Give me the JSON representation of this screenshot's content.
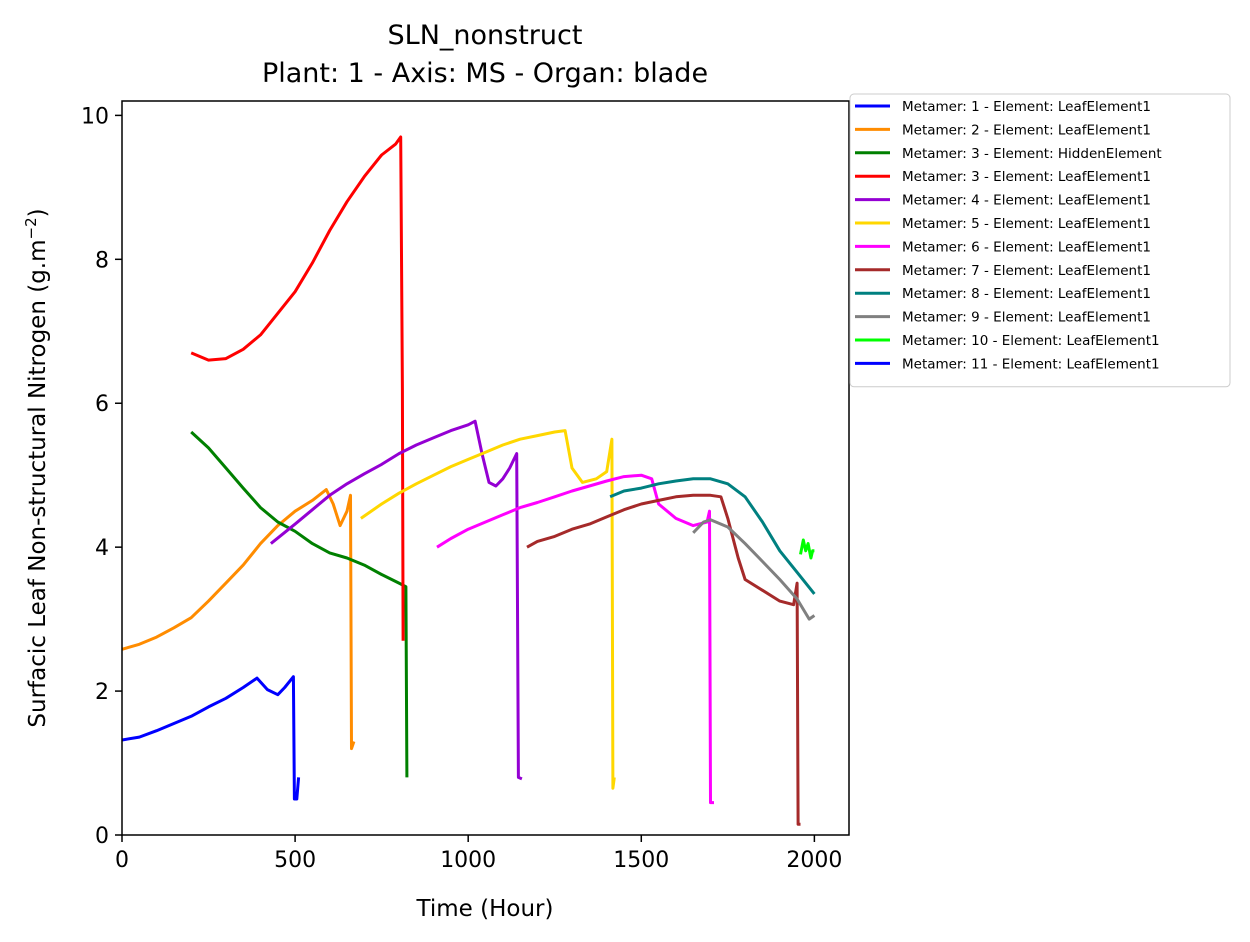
{
  "chart_data": {
    "type": "line",
    "title": "SLN_nonstruct",
    "subtitle": "Plant: 1 - Axis: MS - Organ: blade",
    "xlabel": "Time (Hour)",
    "ylabel": "Surfacic Leaf Non-structural Nitrogen (g.m",
    "ylabel_sup": "−2",
    "ylabel_close": ")",
    "xlim": [
      0,
      2100
    ],
    "ylim": [
      0,
      10.2
    ],
    "xticks": [
      0,
      500,
      1000,
      1500,
      2000
    ],
    "yticks": [
      0,
      2,
      4,
      6,
      8,
      10
    ],
    "grid": false,
    "legend_position": "outside-right-top",
    "series": [
      {
        "name": "Metamer: 1 - Element: LeafElement1",
        "color": "#0000ff",
        "points": [
          [
            0,
            1.32
          ],
          [
            50,
            1.36
          ],
          [
            100,
            1.45
          ],
          [
            150,
            1.55
          ],
          [
            200,
            1.65
          ],
          [
            250,
            1.78
          ],
          [
            300,
            1.9
          ],
          [
            350,
            2.05
          ],
          [
            390,
            2.18
          ],
          [
            420,
            2.02
          ],
          [
            450,
            1.95
          ],
          [
            470,
            2.05
          ],
          [
            495,
            2.2
          ],
          [
            498,
            0.5
          ],
          [
            505,
            0.5
          ],
          [
            510,
            0.8
          ]
        ]
      },
      {
        "name": "Metamer: 2 - Element: LeafElement1",
        "color": "#ff8c00",
        "points": [
          [
            0,
            2.58
          ],
          [
            50,
            2.65
          ],
          [
            100,
            2.75
          ],
          [
            150,
            2.88
          ],
          [
            200,
            3.02
          ],
          [
            250,
            3.25
          ],
          [
            300,
            3.5
          ],
          [
            350,
            3.75
          ],
          [
            400,
            4.05
          ],
          [
            450,
            4.3
          ],
          [
            500,
            4.5
          ],
          [
            550,
            4.65
          ],
          [
            590,
            4.8
          ],
          [
            610,
            4.6
          ],
          [
            630,
            4.3
          ],
          [
            650,
            4.5
          ],
          [
            660,
            4.72
          ],
          [
            663,
            1.2
          ],
          [
            670,
            1.3
          ]
        ]
      },
      {
        "name": "Metamer: 3 - Element: HiddenElement",
        "color": "#008000",
        "points": [
          [
            200,
            5.6
          ],
          [
            250,
            5.38
          ],
          [
            300,
            5.1
          ],
          [
            350,
            4.82
          ],
          [
            400,
            4.55
          ],
          [
            450,
            4.35
          ],
          [
            500,
            4.22
          ],
          [
            550,
            4.05
          ],
          [
            600,
            3.92
          ],
          [
            650,
            3.85
          ],
          [
            700,
            3.75
          ],
          [
            750,
            3.62
          ],
          [
            800,
            3.5
          ],
          [
            820,
            3.45
          ],
          [
            823,
            0.8
          ]
        ]
      },
      {
        "name": "Metamer: 3 - Element: LeafElement1",
        "color": "#ff0000",
        "points": [
          [
            200,
            6.7
          ],
          [
            250,
            6.6
          ],
          [
            300,
            6.62
          ],
          [
            350,
            6.75
          ],
          [
            400,
            6.95
          ],
          [
            450,
            7.25
          ],
          [
            500,
            7.55
          ],
          [
            550,
            7.95
          ],
          [
            600,
            8.4
          ],
          [
            650,
            8.8
          ],
          [
            700,
            9.15
          ],
          [
            750,
            9.45
          ],
          [
            790,
            9.6
          ],
          [
            805,
            9.7
          ],
          [
            810,
            6.2
          ],
          [
            812,
            2.7
          ]
        ]
      },
      {
        "name": "Metamer: 4 - Element: LeafElement1",
        "color": "#9400d3",
        "points": [
          [
            430,
            4.05
          ],
          [
            500,
            4.32
          ],
          [
            550,
            4.52
          ],
          [
            600,
            4.72
          ],
          [
            650,
            4.88
          ],
          [
            700,
            5.02
          ],
          [
            750,
            5.15
          ],
          [
            800,
            5.3
          ],
          [
            850,
            5.42
          ],
          [
            900,
            5.52
          ],
          [
            950,
            5.62
          ],
          [
            1000,
            5.7
          ],
          [
            1020,
            5.75
          ],
          [
            1040,
            5.3
          ],
          [
            1060,
            4.9
          ],
          [
            1080,
            4.85
          ],
          [
            1100,
            4.95
          ],
          [
            1120,
            5.1
          ],
          [
            1140,
            5.3
          ],
          [
            1145,
            0.8
          ],
          [
            1155,
            0.78
          ]
        ]
      },
      {
        "name": "Metamer: 5 - Element: LeafElement1",
        "color": "#ffd700",
        "points": [
          [
            690,
            4.4
          ],
          [
            750,
            4.6
          ],
          [
            800,
            4.75
          ],
          [
            850,
            4.88
          ],
          [
            900,
            5.0
          ],
          [
            950,
            5.12
          ],
          [
            1000,
            5.22
          ],
          [
            1050,
            5.32
          ],
          [
            1100,
            5.42
          ],
          [
            1150,
            5.5
          ],
          [
            1200,
            5.55
          ],
          [
            1250,
            5.6
          ],
          [
            1280,
            5.62
          ],
          [
            1300,
            5.1
          ],
          [
            1330,
            4.9
          ],
          [
            1370,
            4.95
          ],
          [
            1400,
            5.05
          ],
          [
            1415,
            5.5
          ],
          [
            1418,
            0.65
          ],
          [
            1422,
            0.8
          ]
        ]
      },
      {
        "name": "Metamer: 6 - Element: LeafElement1",
        "color": "#ff00ff",
        "points": [
          [
            910,
            4.0
          ],
          [
            950,
            4.12
          ],
          [
            1000,
            4.25
          ],
          [
            1050,
            4.35
          ],
          [
            1100,
            4.45
          ],
          [
            1150,
            4.55
          ],
          [
            1200,
            4.62
          ],
          [
            1250,
            4.7
          ],
          [
            1300,
            4.78
          ],
          [
            1350,
            4.85
          ],
          [
            1400,
            4.92
          ],
          [
            1450,
            4.98
          ],
          [
            1500,
            5.0
          ],
          [
            1530,
            4.95
          ],
          [
            1550,
            4.6
          ],
          [
            1600,
            4.4
          ],
          [
            1650,
            4.3
          ],
          [
            1690,
            4.35
          ],
          [
            1697,
            4.5
          ],
          [
            1700,
            0.45
          ],
          [
            1710,
            0.45
          ]
        ]
      },
      {
        "name": "Metamer: 7 - Element: LeafElement1",
        "color": "#a52a2a",
        "points": [
          [
            1170,
            4.0
          ],
          [
            1200,
            4.08
          ],
          [
            1250,
            4.15
          ],
          [
            1300,
            4.25
          ],
          [
            1350,
            4.32
          ],
          [
            1400,
            4.42
          ],
          [
            1450,
            4.52
          ],
          [
            1500,
            4.6
          ],
          [
            1550,
            4.65
          ],
          [
            1600,
            4.7
          ],
          [
            1650,
            4.72
          ],
          [
            1700,
            4.72
          ],
          [
            1730,
            4.7
          ],
          [
            1750,
            4.4
          ],
          [
            1780,
            3.85
          ],
          [
            1800,
            3.55
          ],
          [
            1850,
            3.4
          ],
          [
            1900,
            3.25
          ],
          [
            1940,
            3.2
          ],
          [
            1950,
            3.5
          ],
          [
            1953,
            0.15
          ],
          [
            1960,
            0.15
          ]
        ]
      },
      {
        "name": "Metamer: 8 - Element: LeafElement1",
        "color": "#008080",
        "points": [
          [
            1410,
            4.7
          ],
          [
            1450,
            4.78
          ],
          [
            1500,
            4.82
          ],
          [
            1550,
            4.88
          ],
          [
            1600,
            4.92
          ],
          [
            1650,
            4.95
          ],
          [
            1700,
            4.95
          ],
          [
            1750,
            4.88
          ],
          [
            1800,
            4.7
          ],
          [
            1850,
            4.35
          ],
          [
            1900,
            3.95
          ],
          [
            1950,
            3.65
          ],
          [
            2000,
            3.35
          ]
        ]
      },
      {
        "name": "Metamer: 9 - Element: LeafElement1",
        "color": "#808080",
        "points": [
          [
            1650,
            4.2
          ],
          [
            1680,
            4.35
          ],
          [
            1700,
            4.38
          ],
          [
            1750,
            4.28
          ],
          [
            1800,
            4.05
          ],
          [
            1850,
            3.8
          ],
          [
            1900,
            3.55
          ],
          [
            1950,
            3.28
          ],
          [
            1985,
            3.0
          ],
          [
            2000,
            3.05
          ]
        ]
      },
      {
        "name": "Metamer: 10 - Element: LeafElement1",
        "color": "#00ff00",
        "points": [
          [
            1960,
            3.9
          ],
          [
            1968,
            4.1
          ],
          [
            1975,
            3.95
          ],
          [
            1982,
            4.05
          ],
          [
            1990,
            3.85
          ],
          [
            1995,
            3.95
          ],
          [
            2000,
            3.95
          ]
        ]
      },
      {
        "name": "Metamer: 11 - Element: LeafElement1",
        "color": "#0000ff",
        "points": []
      }
    ]
  }
}
